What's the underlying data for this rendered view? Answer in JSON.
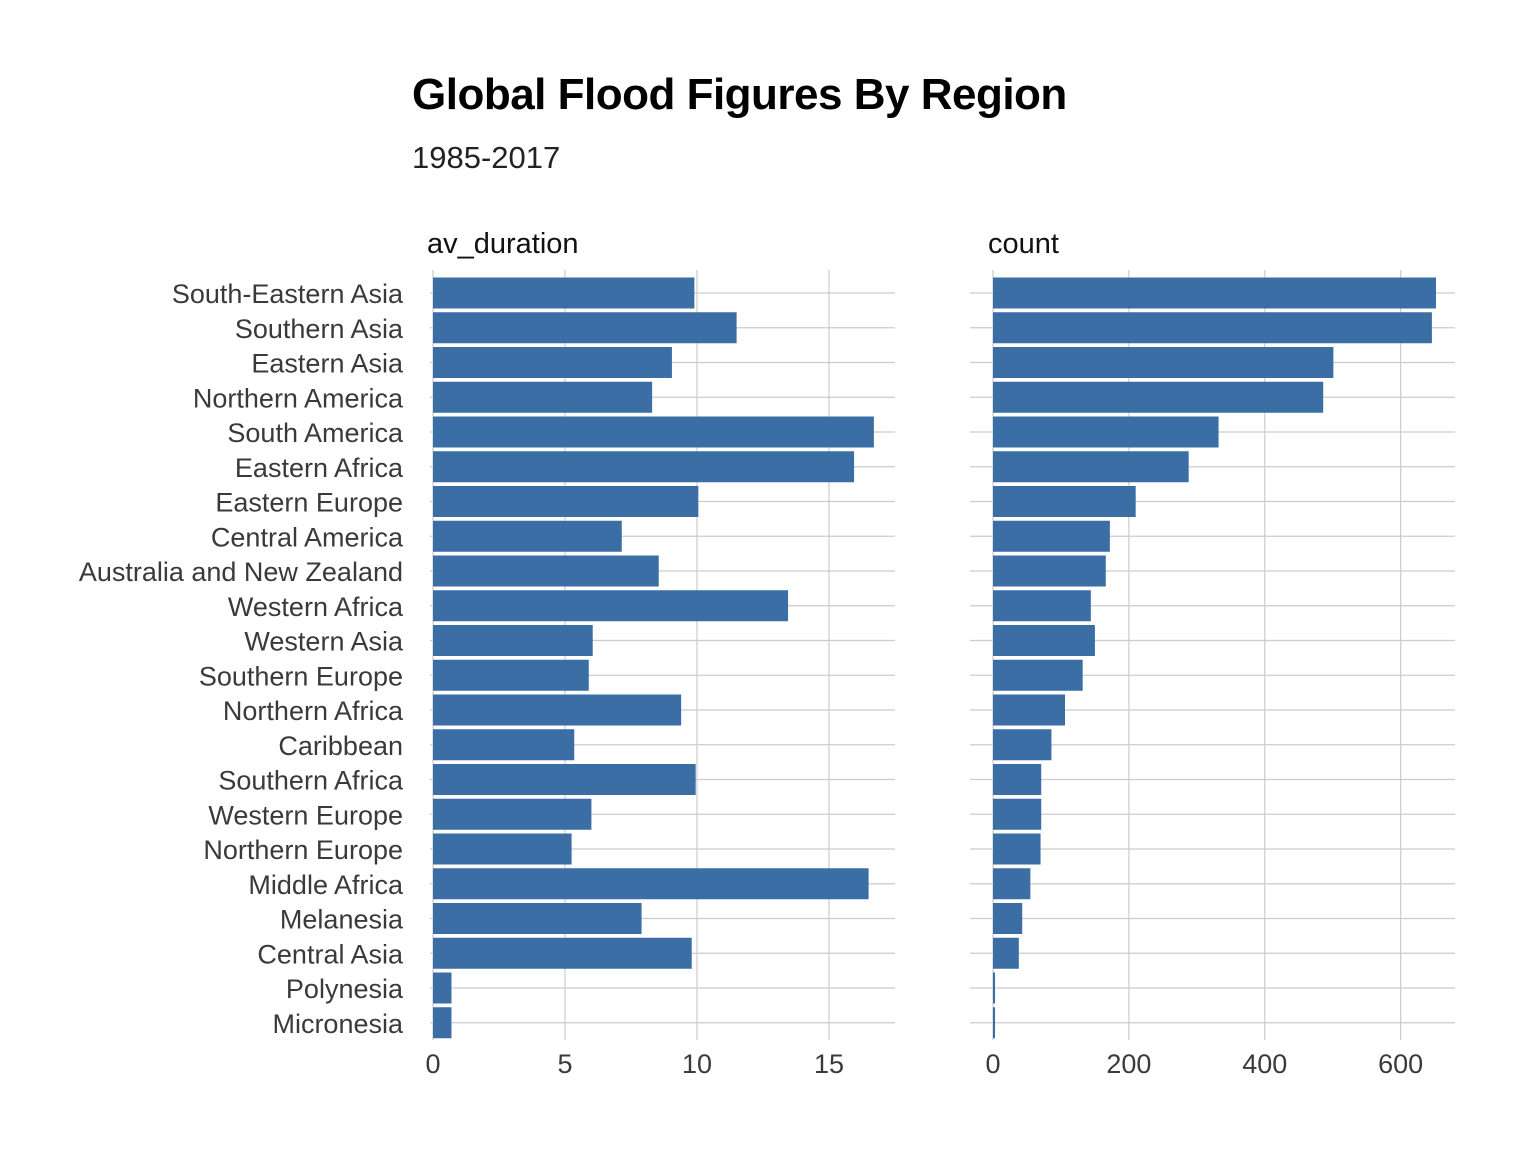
{
  "chart_data": {
    "type": "bar",
    "orientation": "horizontal",
    "title": "Global Flood Figures By Region",
    "subtitle": "1985-2017",
    "bar_color": "#3a6ea5",
    "grid_color": "#cccccc",
    "categories": [
      "South-Eastern Asia",
      "Southern Asia",
      "Eastern Asia",
      "Northern America",
      "South America",
      "Eastern Africa",
      "Eastern Europe",
      "Central America",
      "Australia and New Zealand",
      "Western Africa",
      "Western Asia",
      "Southern Europe",
      "Northern Africa",
      "Caribbean",
      "Southern Africa",
      "Western Europe",
      "Northern Europe",
      "Middle Africa",
      "Melanesia",
      "Central Asia",
      "Polynesia",
      "Micronesia"
    ],
    "panels": [
      {
        "name": "av_duration",
        "xlim": [
          0,
          17.5
        ],
        "ticks": [
          0,
          5,
          10,
          15
        ],
        "values": [
          9.9,
          11.5,
          9.05,
          8.3,
          16.7,
          15.95,
          10.05,
          7.15,
          8.55,
          13.45,
          6.05,
          5.9,
          9.4,
          5.35,
          9.95,
          6.0,
          5.25,
          16.5,
          7.9,
          9.8,
          0.7,
          0.7
        ]
      },
      {
        "name": "count",
        "xlim": [
          0,
          680
        ],
        "ticks": [
          0,
          200,
          400,
          600
        ],
        "values": [
          652,
          646,
          501,
          486,
          332,
          288,
          210,
          172,
          166,
          144,
          150,
          132,
          106,
          86,
          71,
          71,
          70,
          55,
          43,
          38,
          3,
          3
        ]
      }
    ]
  }
}
